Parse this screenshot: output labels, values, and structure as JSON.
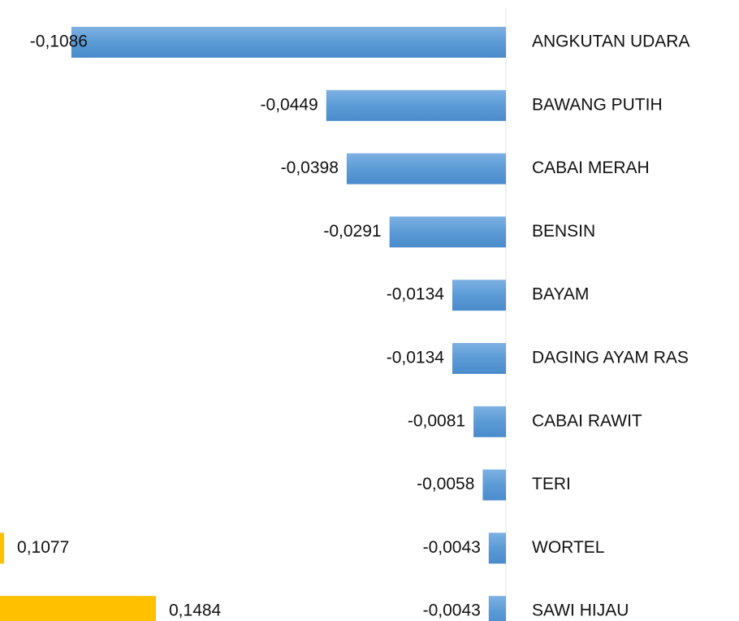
{
  "chart_data": [
    {
      "type": "barh",
      "categories": [
        "ANGKUTAN UDARA",
        "BAWANG PUTIH",
        "CABAI MERAH",
        "BENSIN",
        "BAYAM",
        "DAGING AYAM RAS",
        "CABAI RAWIT",
        "TERI",
        "WORTEL",
        "SAWI HIJAU"
      ],
      "values": [
        -0.1086,
        -0.0449,
        -0.0398,
        -0.0291,
        -0.0134,
        -0.0134,
        -0.0081,
        -0.0058,
        -0.0043,
        -0.0043
      ],
      "value_labels": [
        "-0,1086",
        "-0,0449",
        "-0,0398",
        "-0,0291",
        "-0,0134",
        "-0,0134",
        "-0,0081",
        "-0,0058",
        "-0,0043",
        "-0,0043"
      ],
      "color": "#5b9bd5",
      "xlim": [
        -0.11,
        0
      ]
    },
    {
      "type": "barh",
      "categories": [
        null,
        null
      ],
      "values": [
        0.1077,
        0.1484
      ],
      "value_labels": [
        "0,1077",
        "0,1484"
      ],
      "color": "#ffc000",
      "xlim": [
        0.1066,
        0.1484
      ]
    }
  ]
}
